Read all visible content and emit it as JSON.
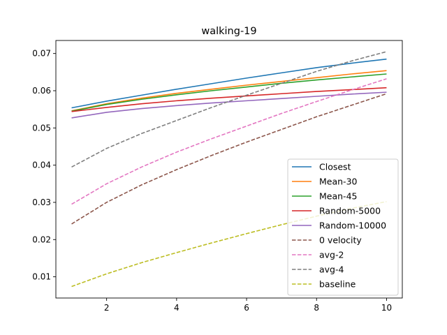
{
  "chart_data": {
    "type": "line",
    "title": "walking-19",
    "xlabel": "",
    "ylabel": "",
    "xlim": [
      0.55,
      10.45
    ],
    "ylim": [
      0.0043,
      0.0735
    ],
    "xticks": [
      2,
      4,
      6,
      8,
      10
    ],
    "yticks": [
      0.01,
      0.02,
      0.03,
      0.04,
      0.05,
      0.06,
      0.07
    ],
    "ytick_labels": [
      "0.01",
      "0.02",
      "0.03",
      "0.04",
      "0.05",
      "0.06",
      "0.07"
    ],
    "grid": false,
    "legend_position": "lower-right",
    "x": [
      1,
      2,
      3,
      4,
      5,
      6,
      7,
      8,
      9,
      10
    ],
    "series": [
      {
        "name": "Closest",
        "color": "#1f77b4",
        "dash": "solid",
        "values": [
          0.0554,
          0.0572,
          0.0588,
          0.0604,
          0.0619,
          0.0634,
          0.0648,
          0.0662,
          0.0674,
          0.0685
        ]
      },
      {
        "name": "Mean-30",
        "color": "#ff7f0e",
        "dash": "solid",
        "values": [
          0.0546,
          0.0565,
          0.058,
          0.0593,
          0.0604,
          0.0615,
          0.0625,
          0.0635,
          0.0645,
          0.0654
        ]
      },
      {
        "name": "Mean-45",
        "color": "#2ca02c",
        "dash": "solid",
        "values": [
          0.0545,
          0.0563,
          0.0577,
          0.0589,
          0.06,
          0.061,
          0.062,
          0.0629,
          0.0637,
          0.0645
        ]
      },
      {
        "name": "Random-5000",
        "color": "#d62728",
        "dash": "solid",
        "values": [
          0.0544,
          0.0555,
          0.0565,
          0.0573,
          0.058,
          0.0586,
          0.0592,
          0.0598,
          0.0603,
          0.0608
        ]
      },
      {
        "name": "Random-10000",
        "color": "#9467bd",
        "dash": "solid",
        "values": [
          0.0527,
          0.0542,
          0.0552,
          0.056,
          0.0567,
          0.0573,
          0.0579,
          0.0585,
          0.0591,
          0.0596
        ]
      },
      {
        "name": "0 velocity",
        "color": "#8c564b",
        "dash": "dashed",
        "values": [
          0.0242,
          0.03,
          0.0347,
          0.0388,
          0.0426,
          0.0462,
          0.0496,
          0.053,
          0.0561,
          0.0592
        ]
      },
      {
        "name": "avg-2",
        "color": "#e377c2",
        "dash": "dashed",
        "values": [
          0.0295,
          0.035,
          0.0395,
          0.0435,
          0.0471,
          0.0505,
          0.0539,
          0.0571,
          0.0602,
          0.0632
        ]
      },
      {
        "name": "avg-4",
        "color": "#7f7f7f",
        "dash": "dashed",
        "values": [
          0.0395,
          0.0445,
          0.0485,
          0.052,
          0.0555,
          0.0588,
          0.062,
          0.0652,
          0.068,
          0.0705
        ]
      },
      {
        "name": "baseline",
        "color": "#bcbd22",
        "dash": "dashed",
        "values": [
          0.0074,
          0.0108,
          0.0138,
          0.0165,
          0.0191,
          0.0216,
          0.024,
          0.0263,
          0.0284,
          0.0302
        ]
      }
    ]
  }
}
